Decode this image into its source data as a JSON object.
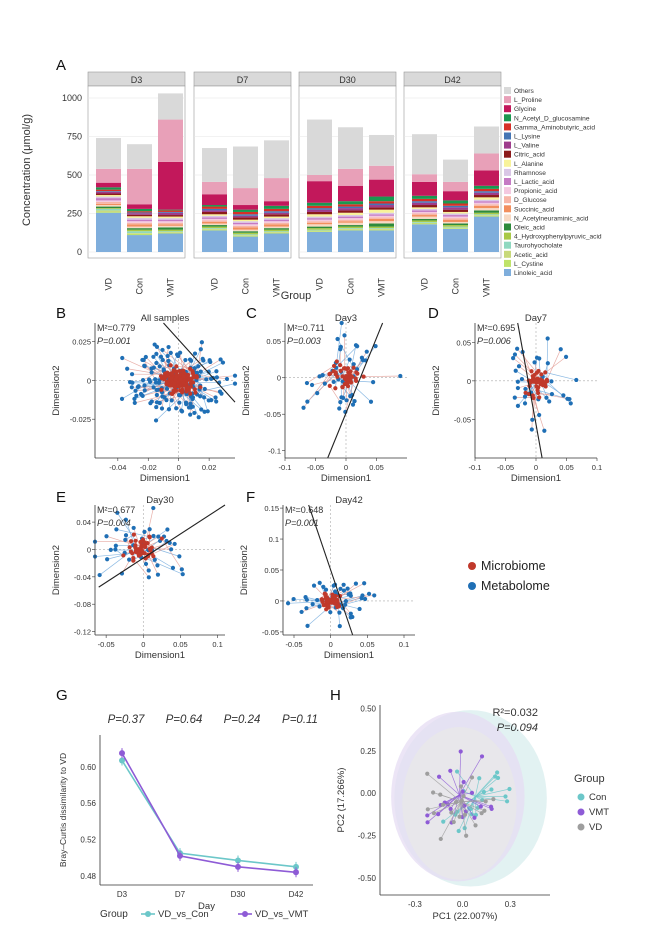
{
  "panel_letters": [
    "A",
    "B",
    "C",
    "D",
    "E",
    "F",
    "G",
    "H"
  ],
  "chart_data": [
    {
      "id": "A",
      "type": "bar",
      "stacked": true,
      "facets": [
        "D3",
        "D7",
        "D30",
        "D42"
      ],
      "categories": [
        "VD",
        "Con",
        "VMT"
      ],
      "ylabel": "Concentration (μmol/g)",
      "xlabel": "Group",
      "ylim": [
        0,
        1050
      ],
      "yticks": [
        0,
        250,
        500,
        750,
        1000
      ],
      "legend_position": "right",
      "legend": [
        "Others",
        "L_Proline",
        "Glycine",
        "N_Acetyl_D_glucosamine",
        "Gamma_Aminobutyric_acid",
        "L_Lysine",
        "L_Valine",
        "Citric_acid",
        "L_Alanine",
        "Rhamnose",
        "L_Lactic_acid",
        "Propionic_acid",
        "D_Glucose",
        "Succinic_acid",
        "N_Acetylneuraminic_acid",
        "Oleic_acid",
        "4_Hydroxyphenylpyruvic_acid",
        "Taurohyocholate",
        "Acetic_acid",
        "L_Cystine",
        "Linoleic_acid"
      ],
      "colors": [
        "#d9d9d9",
        "#e8a0b8",
        "#c2185b",
        "#1a9850",
        "#d73027",
        "#4575b4",
        "#9e3c8c",
        "#8b1a1a",
        "#f8f39a",
        "#d9c6e6",
        "#c57bc4",
        "#f4c9e0",
        "#f7b6a7",
        "#f28f5e",
        "#f7d9c4",
        "#2d8b3c",
        "#a9c947",
        "#8fd8c0",
        "#c8d97a",
        "#bfe36a",
        "#7faedc"
      ],
      "segments": [
        [
          [
            200,
            90,
            30,
            15,
            10,
            5,
            10,
            10,
            10,
            10,
            15,
            10,
            12,
            8,
            10,
            10,
            5,
            10,
            10,
            5,
            255
          ],
          [
            160,
            230,
            30,
            15,
            8,
            5,
            10,
            10,
            10,
            12,
            10,
            10,
            10,
            15,
            10,
            10,
            10,
            12,
            5,
            8,
            110
          ],
          [
            170,
            275,
            310,
            5,
            10,
            5,
            15,
            10,
            10,
            10,
            10,
            10,
            10,
            10,
            10,
            15,
            10,
            5,
            5,
            5,
            120
          ]
        ],
        [
          [
            220,
            80,
            70,
            10,
            15,
            10,
            10,
            15,
            10,
            10,
            10,
            10,
            10,
            10,
            10,
            10,
            10,
            5,
            5,
            5,
            140
          ],
          [
            270,
            110,
            30,
            15,
            15,
            10,
            10,
            15,
            10,
            10,
            10,
            10,
            10,
            15,
            10,
            10,
            10,
            5,
            5,
            5,
            100
          ],
          [
            245,
            150,
            30,
            20,
            15,
            10,
            10,
            15,
            10,
            10,
            10,
            10,
            10,
            15,
            10,
            10,
            10,
            5,
            5,
            5,
            120
          ]
        ],
        [
          [
            360,
            40,
            140,
            20,
            15,
            10,
            15,
            15,
            15,
            10,
            10,
            10,
            10,
            10,
            15,
            10,
            10,
            5,
            5,
            5,
            130
          ],
          [
            270,
            110,
            100,
            20,
            15,
            10,
            15,
            15,
            15,
            10,
            10,
            10,
            10,
            10,
            15,
            10,
            10,
            5,
            5,
            5,
            140
          ],
          [
            200,
            90,
            110,
            30,
            15,
            10,
            15,
            15,
            20,
            10,
            10,
            10,
            10,
            15,
            15,
            20,
            10,
            5,
            5,
            5,
            140
          ]
        ],
        [
          [
            260,
            50,
            90,
            20,
            15,
            10,
            15,
            15,
            10,
            10,
            10,
            10,
            10,
            10,
            15,
            10,
            10,
            5,
            5,
            5,
            180
          ],
          [
            145,
            60,
            60,
            20,
            15,
            10,
            15,
            15,
            10,
            10,
            10,
            10,
            10,
            15,
            10,
            10,
            10,
            5,
            5,
            5,
            150
          ],
          [
            175,
            110,
            100,
            20,
            15,
            10,
            15,
            15,
            15,
            10,
            10,
            10,
            10,
            15,
            15,
            15,
            10,
            5,
            5,
            5,
            230
          ]
        ]
      ]
    },
    {
      "id": "B",
      "type": "scatter",
      "title": "All samples",
      "stat1": "M²=0.779",
      "stat2": "P=0.001",
      "xlabel": "Dimension1",
      "ylabel": "Dimension2",
      "xlim": [
        -0.055,
        0.037
      ],
      "ylim": [
        -0.05,
        0.037
      ],
      "xticks": [
        -0.04,
        -0.02,
        0.0,
        0.02
      ],
      "yticks": [
        -0.025,
        0.0,
        0.025
      ],
      "n_points": 160,
      "spread": [
        0.03,
        0.02
      ],
      "regression_line": [
        [
          -0.01,
          0.037
        ],
        [
          0.037,
          -0.014
        ]
      ]
    },
    {
      "id": "C",
      "type": "scatter",
      "title": "Day3",
      "stat1": "M²=0.711",
      "stat2": "P=0.003",
      "xlabel": "Dimension1",
      "ylabel": "Dimension2",
      "xlim": [
        -0.1,
        0.1
      ],
      "ylim": [
        -0.11,
        0.075
      ],
      "xticks": [
        -0.1,
        -0.05,
        0.0,
        0.05
      ],
      "yticks": [
        -0.1,
        -0.05,
        0.0,
        0.05
      ],
      "n_points": 45,
      "spread": [
        0.06,
        0.05
      ],
      "regression_line": [
        [
          -0.03,
          -0.11
        ],
        [
          0.06,
          0.075
        ]
      ]
    },
    {
      "id": "D",
      "type": "scatter",
      "title": "Day7",
      "stat1": "M²=0.695",
      "stat2": "P=0.006",
      "xlabel": "Dimension1",
      "ylabel": "Dimension2",
      "xlim": [
        -0.1,
        0.1
      ],
      "ylim": [
        -0.1,
        0.075
      ],
      "xticks": [
        -0.1,
        -0.05,
        0.0,
        0.05,
        0.1
      ],
      "yticks": [
        -0.05,
        0.0,
        0.05
      ],
      "n_points": 40,
      "spread": [
        0.05,
        0.05
      ],
      "regression_line": [
        [
          -0.03,
          0.075
        ],
        [
          0.01,
          -0.1
        ]
      ]
    },
    {
      "id": "E",
      "type": "scatter",
      "title": "Day30",
      "stat1": "M²=0.677",
      "stat2": "P=0.004",
      "xlabel": "Dimension1",
      "ylabel": "Dimension2",
      "xlim": [
        -0.065,
        0.11
      ],
      "ylim": [
        -0.125,
        0.065
      ],
      "xticks": [
        -0.05,
        0.0,
        0.05,
        0.1
      ],
      "yticks": [
        -0.12,
        -0.08,
        -0.04,
        0.0,
        0.04
      ],
      "n_points": 45,
      "spread": [
        0.055,
        0.045
      ],
      "regression_line": [
        [
          -0.06,
          -0.055
        ],
        [
          0.11,
          0.065
        ]
      ]
    },
    {
      "id": "F",
      "type": "scatter",
      "title": "Day42",
      "stat1": "M²=0.648",
      "stat2": "P=0.001",
      "xlabel": "Dimension1",
      "ylabel": "Dimension2",
      "xlim": [
        -0.065,
        0.115
      ],
      "ylim": [
        -0.055,
        0.155
      ],
      "xticks": [
        -0.05,
        0.0,
        0.05,
        0.1
      ],
      "yticks": [
        -0.05,
        0.0,
        0.05,
        0.1,
        0.15
      ],
      "n_points": 45,
      "spread": [
        0.05,
        0.035
      ],
      "regression_line": [
        [
          -0.03,
          0.155
        ],
        [
          0.03,
          -0.055
        ]
      ]
    },
    {
      "id": "G",
      "type": "line",
      "xlabel": "Day",
      "ylabel": "Bray–Curtis dissimilarity to VD",
      "categories": [
        "D3",
        "D7",
        "D30",
        "D42"
      ],
      "ylim": [
        0.47,
        0.635
      ],
      "yticks": [
        0.48,
        0.52,
        0.56,
        0.6
      ],
      "pvalues": [
        "P=0.37",
        "P=0.64",
        "P=0.24",
        "P=0.11"
      ],
      "legend_title": "Group",
      "series": [
        {
          "name": "VD_vs_Con",
          "color": "#6cc7c9",
          "values": [
            0.607,
            0.505,
            0.497,
            0.49
          ]
        },
        {
          "name": "VD_vs_VMT",
          "color": "#8e5bd6",
          "values": [
            0.615,
            0.502,
            0.49,
            0.484
          ]
        }
      ]
    },
    {
      "id": "H",
      "type": "scatter",
      "xlabel": "PC1 (22.007%)",
      "ylabel": "PC2 (17.266%)",
      "xlim": [
        -0.52,
        0.55
      ],
      "ylim": [
        -0.6,
        0.52
      ],
      "xticks": [
        -0.3,
        0.0,
        0.3
      ],
      "yticks": [
        -0.5,
        -0.25,
        0.0,
        0.25,
        0.5
      ],
      "stat1": "R²=0.032",
      "stat2": "P=0.094",
      "legend_title": "Group",
      "groups": [
        {
          "name": "Con",
          "color": "#6cc7c9",
          "center": [
            0.08,
            -0.02
          ]
        },
        {
          "name": "VMT",
          "color": "#8e5bd6",
          "center": [
            -0.02,
            -0.01
          ]
        },
        {
          "name": "VD",
          "color": "#9e9e9e",
          "center": [
            -0.01,
            -0.05
          ]
        }
      ]
    }
  ],
  "legend_F": {
    "items": [
      {
        "label": "Microbiome",
        "color": "#c0392b"
      },
      {
        "label": "Metabolome",
        "color": "#1f6fb5"
      }
    ]
  }
}
